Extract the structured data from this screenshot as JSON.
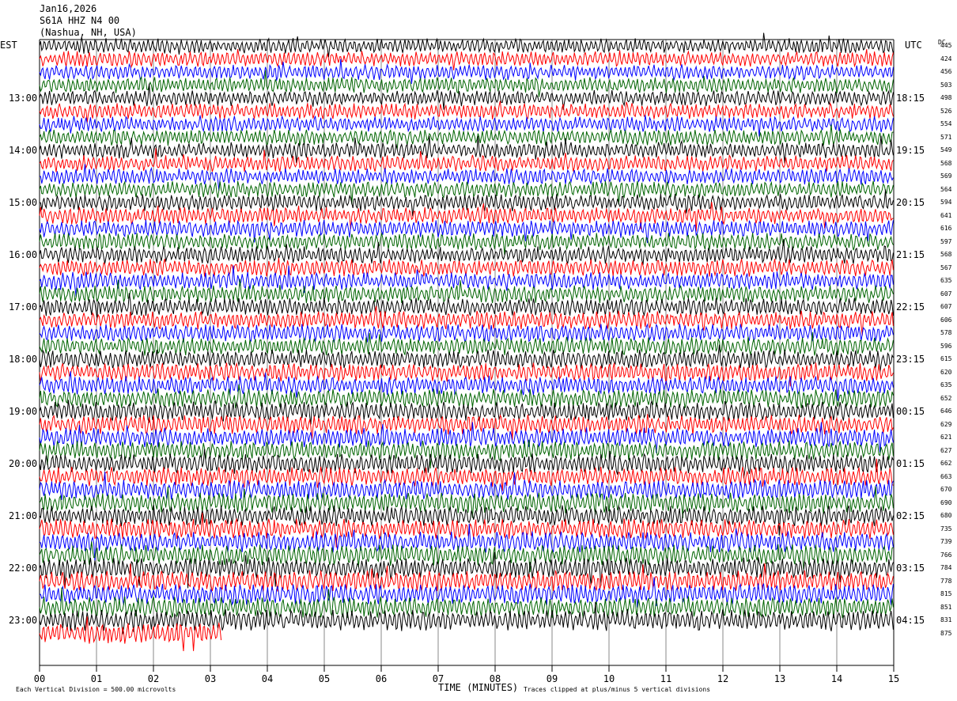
{
  "header": {
    "date": "Jan16,2026",
    "station": "S61A HHZ N4 00",
    "location": "(Nashua, NH, USA)"
  },
  "left_timezone": "EST",
  "right_timezone": "UTC",
  "dc_label": "DC",
  "footer": {
    "scale_note": "Each Vertical Division =  500.00 microvolts",
    "xlabel": "TIME (MINUTES)",
    "clip_note": "Traces clipped at plus/minus 5 vertical divisions"
  },
  "chart_data": {
    "type": "line",
    "title": "",
    "xlabel": "TIME (MINUTES)",
    "xlim": [
      0,
      15
    ],
    "x_ticks": [
      "00",
      "01",
      "02",
      "03",
      "04",
      "05",
      "06",
      "07",
      "08",
      "09",
      "10",
      "11",
      "12",
      "13",
      "14",
      "15"
    ],
    "traces_per_hour": 4,
    "trace_minutes": 15,
    "trace_colors": [
      "#000000",
      "#ff0000",
      "#0000ff",
      "#006400"
    ],
    "last_trace_end_minute": 3.2,
    "left_hour_labels": [
      "13:00",
      "14:00",
      "15:00",
      "16:00",
      "17:00",
      "18:00",
      "19:00",
      "20:00",
      "21:00",
      "22:00",
      "23:00"
    ],
    "right_hour_labels": [
      "18:15",
      "19:15",
      "20:15",
      "21:15",
      "22:15",
      "23:15",
      "00:15",
      "01:15",
      "02:15",
      "03:15",
      "04:15"
    ],
    "dc_offsets": [
      445,
      424,
      456,
      503,
      498,
      526,
      554,
      571,
      549,
      568,
      569,
      564,
      594,
      641,
      616,
      597,
      568,
      567,
      635,
      607,
      607,
      606,
      578,
      596,
      615,
      620,
      635,
      652,
      646,
      629,
      621,
      627,
      662,
      663,
      670,
      690,
      680,
      735,
      739,
      766,
      784,
      778,
      815,
      851,
      831,
      875
    ]
  }
}
